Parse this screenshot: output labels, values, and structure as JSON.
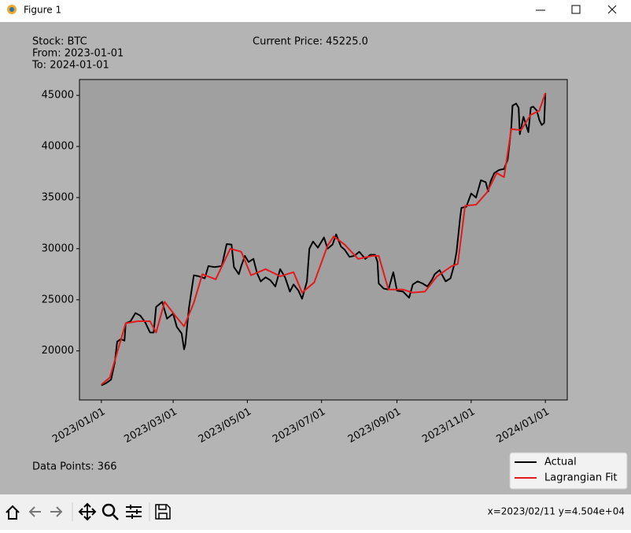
{
  "window": {
    "title": "Figure 1"
  },
  "chart_data": {
    "type": "line",
    "annotations": [
      "Stock: BTC",
      "From: 2023-01-01",
      "To: 2024-01-01",
      "Current Price: 45225.0",
      "Data Points: 366"
    ],
    "series": [
      {
        "name": "Actual",
        "color": "#000000",
        "x": [
          "2023-01-01",
          "2023-01-05",
          "2023-01-09",
          "2023-01-12",
          "2023-01-14",
          "2023-01-17",
          "2023-01-20",
          "2023-01-21",
          "2023-01-25",
          "2023-01-29",
          "2023-02-02",
          "2023-02-06",
          "2023-02-10",
          "2023-02-13",
          "2023-02-15",
          "2023-02-20",
          "2023-02-24",
          "2023-03-01",
          "2023-03-04",
          "2023-03-08",
          "2023-03-10",
          "2023-03-11",
          "2023-03-14",
          "2023-03-18",
          "2023-03-22",
          "2023-03-27",
          "2023-03-30",
          "2023-04-04",
          "2023-04-10",
          "2023-04-14",
          "2023-04-18",
          "2023-04-20",
          "2023-04-24",
          "2023-04-26",
          "2023-04-29",
          "2023-05-02",
          "2023-05-06",
          "2023-05-09",
          "2023-05-12",
          "2023-05-16",
          "2023-05-20",
          "2023-05-24",
          "2023-05-28",
          "2023-06-01",
          "2023-06-05",
          "2023-06-08",
          "2023-06-12",
          "2023-06-15",
          "2023-06-19",
          "2023-06-21",
          "2023-06-24",
          "2023-06-28",
          "2023-07-03",
          "2023-07-06",
          "2023-07-10",
          "2023-07-13",
          "2023-07-17",
          "2023-07-20",
          "2023-07-24",
          "2023-07-28",
          "2023-08-01",
          "2023-08-06",
          "2023-08-10",
          "2023-08-14",
          "2023-08-16",
          "2023-08-17",
          "2023-08-21",
          "2023-08-25",
          "2023-08-29",
          "2023-09-01",
          "2023-09-06",
          "2023-09-11",
          "2023-09-14",
          "2023-09-18",
          "2023-09-22",
          "2023-09-26",
          "2023-09-30",
          "2023-10-02",
          "2023-10-06",
          "2023-10-11",
          "2023-10-15",
          "2023-10-18",
          "2023-10-20",
          "2023-10-23",
          "2023-10-24",
          "2023-10-28",
          "2023-11-01",
          "2023-11-05",
          "2023-11-09",
          "2023-11-13",
          "2023-11-15",
          "2023-11-17",
          "2023-11-20",
          "2023-11-24",
          "2023-11-28",
          "2023-12-01",
          "2023-12-04",
          "2023-12-05",
          "2023-12-08",
          "2023-12-10",
          "2023-12-11",
          "2023-12-14",
          "2023-12-18",
          "2023-12-20",
          "2023-12-22",
          "2023-12-25",
          "2023-12-27",
          "2023-12-29",
          "2023-12-31",
          "2024-01-01"
        ],
        "values": [
          16625,
          16850,
          17200,
          18850,
          20900,
          21150,
          21000,
          22700,
          22900,
          23700,
          23450,
          22800,
          21800,
          21800,
          24300,
          24800,
          23150,
          23650,
          22350,
          21700,
          20150,
          20600,
          24200,
          27400,
          27300,
          27100,
          28300,
          28200,
          28300,
          30450,
          30400,
          28200,
          27500,
          28300,
          29300,
          28700,
          29000,
          27600,
          26800,
          27200,
          26900,
          26300,
          28000,
          27200,
          25800,
          26500,
          25900,
          25100,
          26800,
          30000,
          30700,
          30100,
          31100,
          30000,
          30400,
          31400,
          30200,
          29900,
          29200,
          29300,
          29700,
          29000,
          29400,
          29400,
          28700,
          26600,
          26100,
          26000,
          27700,
          25900,
          25800,
          25200,
          26500,
          26800,
          26600,
          26300,
          27000,
          27500,
          27900,
          26800,
          27100,
          28400,
          29700,
          33100,
          34000,
          34100,
          35400,
          35000,
          36700,
          36500,
          35600,
          36600,
          37400,
          37700,
          37800,
          38700,
          41900,
          44000,
          44200,
          43800,
          41200,
          42900,
          41400,
          43800,
          43900,
          43500,
          42600,
          42100,
          42300,
          45225
        ]
      },
      {
        "name": "Lagrangian Fit",
        "color": "#e41a1c",
        "x": [
          "2023-01-01",
          "2023-01-08",
          "2023-01-21",
          "2023-01-31",
          "2023-02-10",
          "2023-02-15",
          "2023-02-22",
          "2023-03-03",
          "2023-03-10",
          "2023-03-18",
          "2023-03-25",
          "2023-04-05",
          "2023-04-17",
          "2023-04-26",
          "2023-05-04",
          "2023-05-16",
          "2023-05-28",
          "2023-06-08",
          "2023-06-15",
          "2023-06-25",
          "2023-07-06",
          "2023-07-11",
          "2023-07-20",
          "2023-07-31",
          "2023-08-12",
          "2023-08-17",
          "2023-08-25",
          "2023-09-06",
          "2023-09-14",
          "2023-09-24",
          "2023-10-04",
          "2023-10-16",
          "2023-10-21",
          "2023-10-27",
          "2023-11-05",
          "2023-11-14",
          "2023-11-22",
          "2023-11-28",
          "2023-12-04",
          "2023-12-12",
          "2023-12-20",
          "2023-12-27",
          "2024-01-01"
        ],
        "values": [
          16700,
          17400,
          22700,
          22900,
          22900,
          21800,
          24800,
          23400,
          22400,
          24700,
          27500,
          27000,
          30000,
          29700,
          27400,
          28000,
          27300,
          27700,
          25700,
          26700,
          30300,
          31200,
          30400,
          29000,
          29300,
          29300,
          26000,
          26000,
          25700,
          25800,
          27300,
          28300,
          28500,
          34200,
          34300,
          35500,
          37400,
          37000,
          41700,
          41600,
          43100,
          43500,
          45225
        ]
      }
    ],
    "xlim": [
      "2022-12-14",
      "2024-01-19"
    ],
    "xticks": [
      {
        "value": "2023-01-01",
        "label": "2023/01/01"
      },
      {
        "value": "2023-03-01",
        "label": "2023/03/01"
      },
      {
        "value": "2023-05-01",
        "label": "2023/05/01"
      },
      {
        "value": "2023-07-01",
        "label": "2023/07/01"
      },
      {
        "value": "2023-09-01",
        "label": "2023/09/01"
      },
      {
        "value": "2023-11-01",
        "label": "2023/11/01"
      },
      {
        "value": "2024-01-01",
        "label": "2024/01/01"
      }
    ],
    "ylim": [
      15200,
      46550
    ],
    "yticks": [
      20000,
      25000,
      30000,
      35000,
      40000,
      45000
    ],
    "legend": "lower right"
  },
  "toolbar": {
    "status": "x=2023/02/11 y=4.504e+04"
  }
}
